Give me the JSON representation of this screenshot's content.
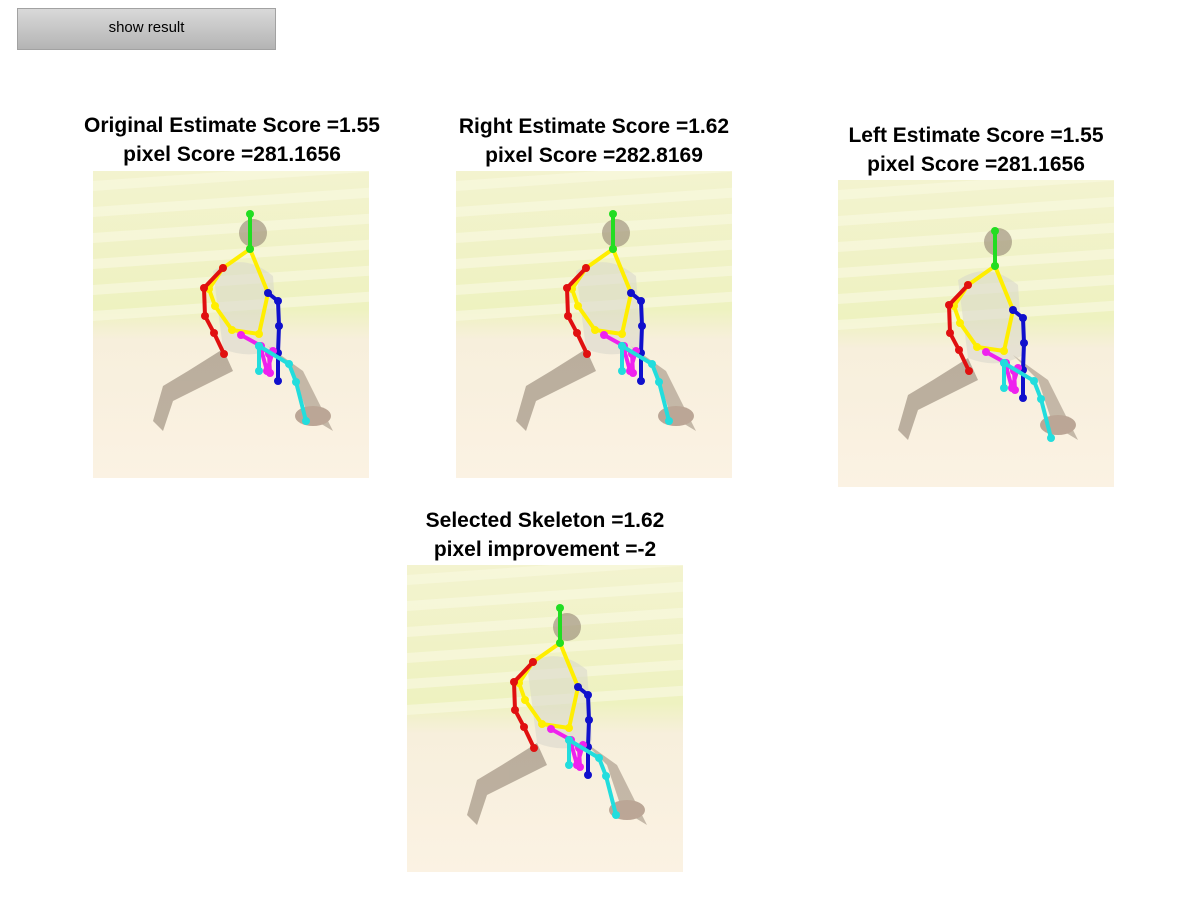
{
  "controls": {
    "show_result_label": "show result"
  },
  "panels": [
    {
      "id": "original",
      "title_line1": "Original Estimate Score =1.55",
      "title_line2": "pixel Score =281.1656"
    },
    {
      "id": "right",
      "title_line1": "Right Estimate Score =1.62",
      "title_line2": "pixel Score =282.8169"
    },
    {
      "id": "left",
      "title_line1": "Left Estimate Score =1.55",
      "title_line2": "pixel Score =281.1656"
    },
    {
      "id": "selected",
      "title_line1": "Selected Skeleton =1.62",
      "title_line2": "pixel improvement =-2"
    }
  ],
  "skeleton_colors": {
    "head": "#22dd22",
    "torso": "#ffee00",
    "right_arm": "#e01010",
    "left_arm": "#1010cc",
    "right_leg": "#ee22ee",
    "left_leg": "#22dddd"
  }
}
